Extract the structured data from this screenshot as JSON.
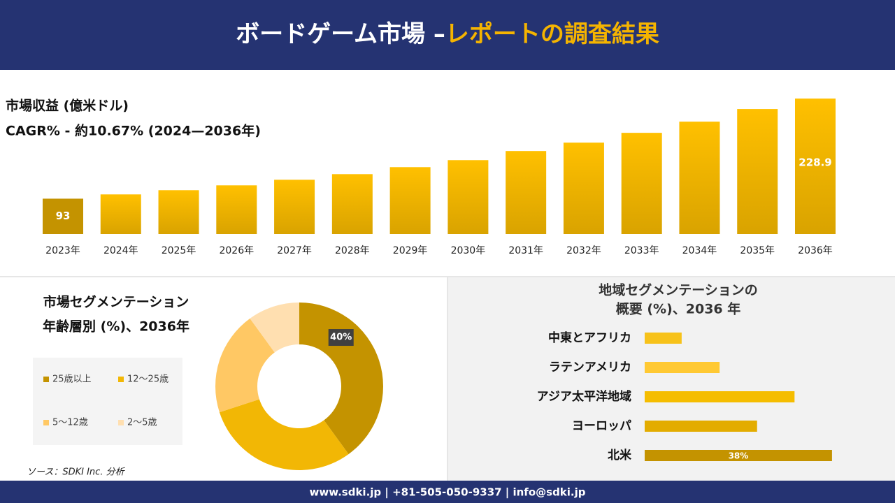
{
  "header": {
    "title_main": "ボードゲーム市場 –",
    "title_accent": "レポートの調査結果"
  },
  "chart_data": [
    {
      "type": "bar",
      "title": "市場収益 (億米ドル)",
      "subtitle": "CAGR% - 約10.67% (2024—2036年)",
      "categories": [
        "2023年",
        "2024年",
        "2025年",
        "2026年",
        "2027年",
        "2028年",
        "2029年",
        "2030年",
        "2031年",
        "2032年",
        "2033年",
        "2034年",
        "2035年",
        "2036年"
      ],
      "values": [
        93,
        98.8,
        104.5,
        111.1,
        118.7,
        126.3,
        135.8,
        145.3,
        157.7,
        169.1,
        182.4,
        197.6,
        214.7,
        228.9
      ],
      "value_labels": [
        "93",
        null,
        null,
        null,
        null,
        null,
        null,
        null,
        null,
        null,
        null,
        null,
        null,
        "228.9"
      ],
      "color": "#e9b100",
      "ylim": [
        45,
        229
      ]
    },
    {
      "type": "donut",
      "title": "市場セグメンテーション",
      "subtitle": "年齢層別 (%)、2036年",
      "categories": [
        "25歳以上",
        "12〜25歳",
        "5〜12歳",
        "2〜5歳"
      ],
      "values": [
        40,
        30,
        20,
        10
      ],
      "value_labels": [
        "40%",
        null,
        null,
        null
      ],
      "colors": [
        "#c49300",
        "#f2b705",
        "#ffc864",
        "#ffdfb0"
      ]
    },
    {
      "type": "barh",
      "title": "地域セグメンテーションの",
      "subtitle": "概要 (%)、2036 年",
      "categories": [
        "中東とアフリカ",
        "ラテンアメリカ",
        "アジア太平洋地域",
        "ヨーロッパ",
        "北米"
      ],
      "values": [
        7.5,
        15.2,
        30.4,
        22.8,
        38
      ],
      "value_labels": [
        null,
        null,
        null,
        null,
        "38%"
      ],
      "colors": [
        "#f7c21a",
        "#ffc933",
        "#f5bd00",
        "#e3ac00",
        "#c49300"
      ],
      "xlim": [
        0,
        40
      ]
    }
  ],
  "source": "ソース：SDKI Inc. 分析",
  "footer": "www.sdki.jp | +81-505-050-9337 | info@sdki.jp"
}
